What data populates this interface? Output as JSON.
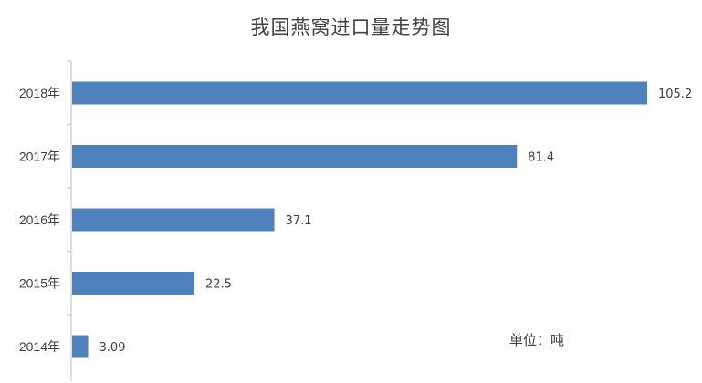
{
  "chart_data": {
    "type": "bar",
    "orientation": "horizontal",
    "title": "我国燕窝进口量走势图",
    "unit_note": "单位：吨",
    "categories": [
      "2018年",
      "2017年",
      "2016年",
      "2015年",
      "2014年"
    ],
    "values": [
      105.2,
      81.4,
      37.1,
      22.5,
      3.09
    ],
    "value_labels": [
      "105.2",
      "81.4",
      "37.1",
      "22.5",
      "3.09"
    ],
    "xlim": [
      0,
      105.2
    ],
    "grid": false,
    "legend": "none",
    "bar_color": "#4f81bd",
    "axis_color": "#bfbfbf"
  }
}
